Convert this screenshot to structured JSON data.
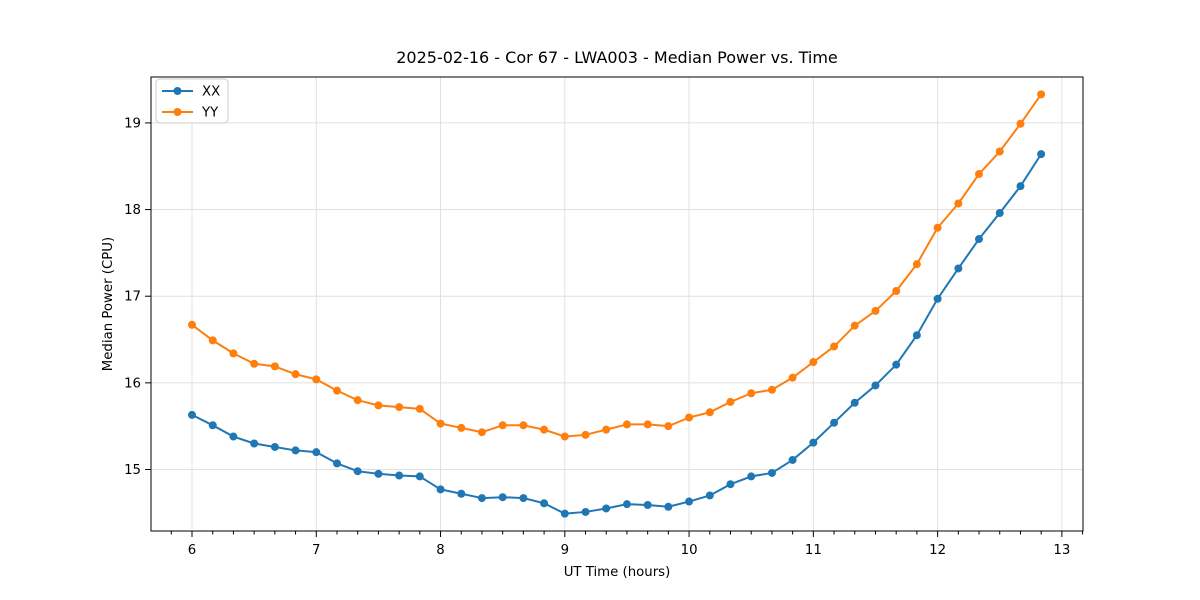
{
  "chart_data": {
    "type": "line",
    "title": "2025-02-16 - Cor 67 - LWA003 - Median Power vs. Time",
    "xlabel": "UT Time (hours)",
    "ylabel": "Median Power (CPU)",
    "xlim": [
      5.67,
      13.17
    ],
    "ylim": [
      14.29,
      19.53
    ],
    "x_major_ticks": [
      6,
      7,
      8,
      9,
      10,
      11,
      12,
      13
    ],
    "y_major_ticks": [
      15,
      16,
      17,
      18,
      19
    ],
    "x_minor_step": 0.16667,
    "grid": "major-both",
    "grid_color": "#e0e0e0",
    "legend_position": "upper-left",
    "x": [
      6.0,
      6.167,
      6.333,
      6.5,
      6.667,
      6.833,
      7.0,
      7.167,
      7.333,
      7.5,
      7.667,
      7.833,
      8.0,
      8.167,
      8.333,
      8.5,
      8.667,
      8.833,
      9.0,
      9.167,
      9.333,
      9.5,
      9.667,
      9.833,
      10.0,
      10.167,
      10.333,
      10.5,
      10.667,
      10.833,
      11.0,
      11.167,
      11.333,
      11.5,
      11.667,
      11.833,
      12.0,
      12.167,
      12.333,
      12.5,
      12.667,
      12.833
    ],
    "series": [
      {
        "name": "XX",
        "color": "#1f77b4",
        "values": [
          15.63,
          15.51,
          15.38,
          15.3,
          15.26,
          15.22,
          15.2,
          15.07,
          14.98,
          14.95,
          14.93,
          14.92,
          14.77,
          14.72,
          14.67,
          14.68,
          14.67,
          14.61,
          14.49,
          14.51,
          14.55,
          14.6,
          14.59,
          14.57,
          14.63,
          14.7,
          14.83,
          14.92,
          14.96,
          15.11,
          15.31,
          15.54,
          15.77,
          15.97,
          16.21,
          16.55,
          16.97,
          17.32,
          17.66,
          17.96,
          18.27,
          18.64
        ]
      },
      {
        "name": "YY",
        "color": "#ff7f0e",
        "values": [
          16.67,
          16.49,
          16.34,
          16.22,
          16.19,
          16.1,
          16.04,
          15.91,
          15.8,
          15.74,
          15.72,
          15.7,
          15.53,
          15.48,
          15.43,
          15.51,
          15.51,
          15.46,
          15.38,
          15.4,
          15.46,
          15.52,
          15.52,
          15.5,
          15.6,
          15.66,
          15.78,
          15.88,
          15.92,
          16.06,
          16.24,
          16.42,
          16.66,
          16.83,
          17.06,
          17.37,
          17.79,
          18.07,
          18.41,
          18.67,
          18.99,
          19.33
        ]
      }
    ]
  }
}
